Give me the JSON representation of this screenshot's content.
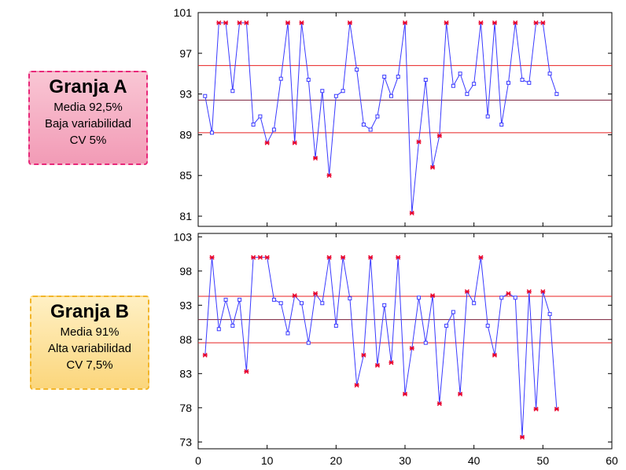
{
  "farms": [
    {
      "title": "Granja A",
      "mean": "Media 92,5%",
      "variability": "Baja variabilidad",
      "cv": "CV 5%"
    },
    {
      "title": "Granja B",
      "mean": "Media 91%",
      "variability": "Alta variabilidad",
      "cv": "CV 7,5%"
    }
  ],
  "colors": {
    "series": "#3a3aff",
    "limit": "#e82020",
    "center": "#7a1f3a",
    "flag": "#e8002a"
  },
  "chart_data": [
    {
      "type": "line",
      "title": "Granja A",
      "xlim": [
        0,
        60
      ],
      "ylim": [
        80,
        101
      ],
      "yticks": [
        81,
        85,
        89,
        93,
        97,
        101
      ],
      "xticks": [
        0,
        10,
        20,
        30,
        40,
        50,
        60
      ],
      "center": 92.4,
      "upper": 95.8,
      "lower": 89.2,
      "x": [
        1,
        2,
        3,
        4,
        5,
        6,
        7,
        8,
        9,
        10,
        11,
        12,
        13,
        14,
        15,
        16,
        17,
        18,
        19,
        20,
        21,
        22,
        23,
        24,
        25,
        26,
        27,
        28,
        29,
        30,
        31,
        32,
        33,
        34,
        35,
        36,
        37,
        38,
        39,
        40,
        41,
        42,
        43,
        44,
        45,
        46,
        47,
        48,
        49,
        50,
        51,
        52
      ],
      "y": [
        92.8,
        89.2,
        100,
        100,
        93.3,
        100,
        100,
        90.0,
        90.8,
        88.2,
        89.5,
        94.5,
        100,
        88.2,
        100,
        94.4,
        86.7,
        93.3,
        85.0,
        92.8,
        93.3,
        100,
        95.4,
        90.0,
        89.5,
        90.8,
        94.7,
        92.8,
        94.7,
        100,
        81.3,
        88.3,
        94.4,
        85.8,
        88.9,
        100,
        93.8,
        95.0,
        93.0,
        94.0,
        100,
        90.8,
        100,
        90.0,
        94.1,
        100,
        94.4,
        94.1,
        100,
        100,
        95.0,
        93.0
      ]
    },
    {
      "type": "line",
      "title": "Granja B",
      "xlim": [
        0,
        60
      ],
      "ylim": [
        72,
        103.5
      ],
      "yticks": [
        73,
        78,
        83,
        88,
        93,
        98,
        103
      ],
      "xticks": [
        0,
        10,
        20,
        30,
        40,
        50,
        60
      ],
      "center": 90.9,
      "upper": 94.3,
      "lower": 87.5,
      "x": [
        1,
        2,
        3,
        4,
        5,
        6,
        7,
        8,
        9,
        10,
        11,
        12,
        13,
        14,
        15,
        16,
        17,
        18,
        19,
        20,
        21,
        22,
        23,
        24,
        25,
        26,
        27,
        28,
        29,
        30,
        31,
        32,
        33,
        34,
        35,
        36,
        37,
        38,
        39,
        40,
        41,
        42,
        43,
        44,
        45,
        46,
        47,
        48,
        49,
        50,
        51,
        52
      ],
      "y": [
        85.7,
        100,
        89.5,
        93.8,
        90.0,
        93.8,
        83.3,
        100,
        100,
        100,
        93.8,
        93.3,
        88.9,
        94.4,
        93.3,
        87.5,
        94.7,
        93.3,
        100,
        90.0,
        100,
        94.0,
        81.3,
        85.7,
        100,
        84.2,
        93.0,
        84.6,
        100,
        80.0,
        86.7,
        94.1,
        87.5,
        94.4,
        78.6,
        90.0,
        92.0,
        80.0,
        95.0,
        93.3,
        100,
        90.0,
        85.7,
        94.1,
        94.7,
        94.1,
        73.7,
        95.0,
        77.8,
        95.0,
        91.7,
        77.8
      ]
    }
  ]
}
